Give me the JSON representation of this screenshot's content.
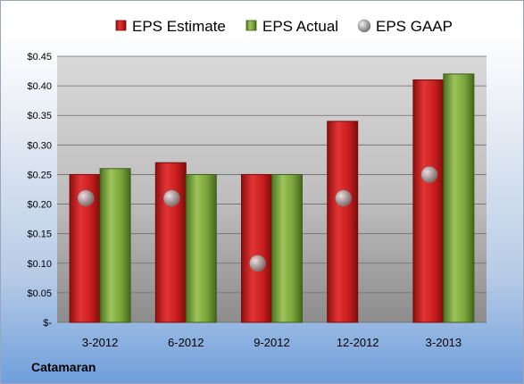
{
  "company": "Catamaran",
  "chart_data": {
    "type": "bar",
    "categories": [
      "3-2012",
      "6-2012",
      "9-2012",
      "12-2012",
      "3-2013"
    ],
    "series": [
      {
        "name": "EPS Estimate",
        "kind": "bar",
        "color": "#cc1f1f",
        "values": [
          0.25,
          0.27,
          0.25,
          0.34,
          0.41
        ]
      },
      {
        "name": "EPS Actual",
        "kind": "bar",
        "color": "#77a33a",
        "values": [
          0.26,
          0.25,
          0.25,
          null,
          0.42
        ]
      },
      {
        "name": "EPS GAAP",
        "kind": "marker",
        "color": "#a9a9a9",
        "values": [
          0.21,
          0.21,
          0.1,
          0.21,
          0.25
        ]
      }
    ],
    "yticks": [
      "$-",
      "$0.05",
      "$0.10",
      "$0.15",
      "$0.20",
      "$0.25",
      "$0.30",
      "$0.35",
      "$0.40",
      "$0.45"
    ],
    "ylim": [
      0,
      0.45
    ],
    "grid": true,
    "legend_position": "top",
    "title": "",
    "xlabel": "",
    "ylabel": ""
  }
}
